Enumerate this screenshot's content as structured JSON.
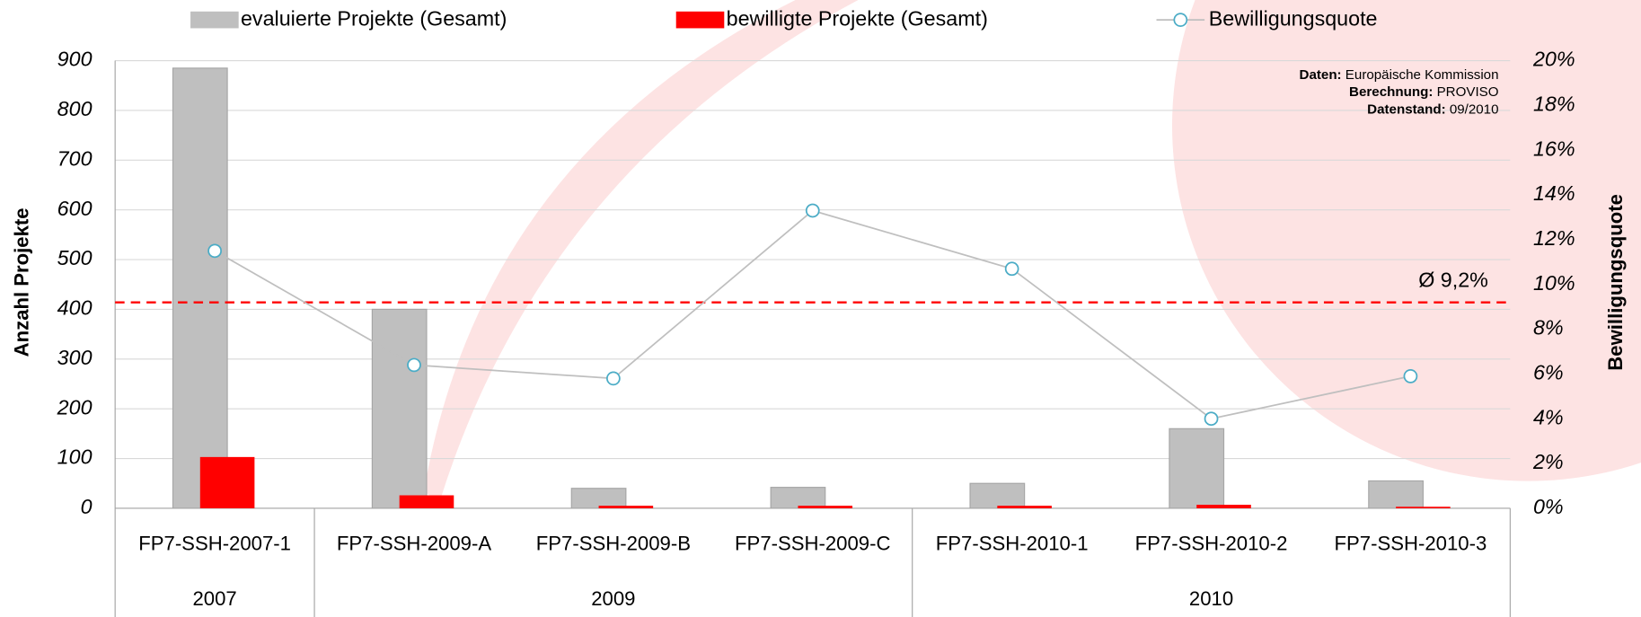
{
  "chart_data": {
    "type": "bar",
    "groups": [
      {
        "label": "2007",
        "categories": [
          "FP7-SSH-2007-1"
        ]
      },
      {
        "label": "2009",
        "categories": [
          "FP7-SSH-2009-A",
          "FP7-SSH-2009-B",
          "FP7-SSH-2009-C"
        ]
      },
      {
        "label": "2010",
        "categories": [
          "FP7-SSH-2010-1",
          "FP7-SSH-2010-2",
          "FP7-SSH-2010-3"
        ]
      }
    ],
    "series": [
      {
        "name": "evaluierte Projekte (Gesamt)",
        "type": "bar",
        "color": "#bfbfbf",
        "values": [
          885,
          400,
          40,
          42,
          50,
          160,
          55
        ]
      },
      {
        "name": "bewilligte Projekte (Gesamt)",
        "type": "bar",
        "color": "#ff0000",
        "values": [
          103,
          26,
          5,
          5,
          5,
          7,
          3
        ]
      },
      {
        "name": "Bewilligungsquote",
        "type": "line",
        "axis": "y2",
        "color": "#bfbfbf",
        "marker_color": "#4bacc6",
        "values": [
          11.5,
          6.4,
          5.8,
          13.3,
          10.7,
          4.0,
          5.9
        ]
      }
    ],
    "ylabel": "Anzahl Projekte",
    "y2label": "Bewilligungsquote",
    "ylim": [
      0,
      900
    ],
    "yticks": [
      0,
      100,
      200,
      300,
      400,
      500,
      600,
      700,
      800,
      900
    ],
    "y2lim": [
      0,
      20
    ],
    "y2ticks": [
      {
        "value": 0,
        "label": "0%"
      },
      {
        "value": 2,
        "label": "2%"
      },
      {
        "value": 4,
        "label": "4%"
      },
      {
        "value": 6,
        "label": "6%"
      },
      {
        "value": 8,
        "label": "8%"
      },
      {
        "value": 10,
        "label": "10%"
      },
      {
        "value": 12,
        "label": "12%"
      },
      {
        "value": 14,
        "label": "14%"
      },
      {
        "value": 16,
        "label": "16%"
      },
      {
        "value": 18,
        "label": "18%"
      },
      {
        "value": 20,
        "label": "20%"
      }
    ],
    "reference_line": {
      "value": 9.2,
      "label": "Ø 9,2%",
      "axis": "y2",
      "color": "#ff0000"
    },
    "source": [
      {
        "label": "Daten:",
        "text": "Europäische Kommission"
      },
      {
        "label": "Berechnung:",
        "text": "PROVISO"
      },
      {
        "label": "Datenstand:",
        "text": "09/2010"
      }
    ],
    "grid": true
  }
}
